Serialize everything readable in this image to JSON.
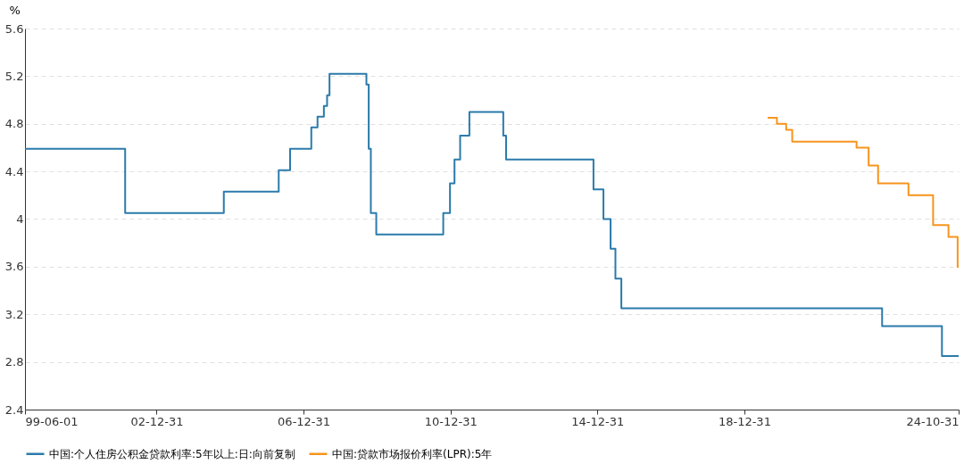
{
  "chart_data": {
    "type": "step",
    "ylabel": "%",
    "series": [
      {
        "name": "中国:个人住房公积金贷款利率:5年以上:日:向前复制",
        "color": "#2b7bab",
        "x": [
          "1999-06-01",
          "2002-02-21",
          "2004-10-29",
          "2006-04-28",
          "2006-08-19",
          "2007-03-18",
          "2007-05-19",
          "2007-07-21",
          "2007-08-22",
          "2007-09-15",
          "2008-09-16",
          "2008-10-09",
          "2008-10-30",
          "2008-12-23",
          "2010-10-20",
          "2010-12-26",
          "2011-02-09",
          "2011-04-06",
          "2011-07-07",
          "2012-06-08",
          "2012-07-06",
          "2014-11-22",
          "2015-03-01",
          "2015-05-11",
          "2015-06-28",
          "2015-08-26",
          "2022-10-01",
          "2024-05-18",
          "2024-10-31"
        ],
        "values": [
          4.59,
          4.05,
          4.23,
          4.41,
          4.59,
          4.77,
          4.86,
          4.95,
          5.04,
          5.22,
          5.13,
          4.59,
          4.05,
          3.87,
          4.05,
          4.3,
          4.5,
          4.7,
          4.9,
          4.7,
          4.5,
          4.25,
          4.0,
          3.75,
          3.5,
          3.25,
          3.1,
          2.85,
          2.85
        ]
      },
      {
        "name": "中国:贷款市场报价利率(LPR):5年",
        "color": "#f7941d",
        "x": [
          "2019-08-20",
          "2019-11-20",
          "2020-02-20",
          "2020-04-20",
          "2022-01-20",
          "2022-05-20",
          "2022-08-22",
          "2023-06-20",
          "2024-02-20",
          "2024-07-22",
          "2024-10-21",
          "2024-10-31"
        ],
        "values": [
          4.85,
          4.8,
          4.75,
          4.65,
          4.6,
          4.45,
          4.3,
          4.2,
          3.95,
          3.85,
          3.6,
          3.6
        ]
      }
    ],
    "xlim": [
      "1999-06-01",
      "2024-10-31"
    ],
    "xticks": [
      {
        "value": "1999-06-01",
        "label": "99-06-01"
      },
      {
        "value": "2002-12-31",
        "label": "02-12-31"
      },
      {
        "value": "2006-12-31",
        "label": "06-12-31"
      },
      {
        "value": "2010-12-31",
        "label": "10-12-31"
      },
      {
        "value": "2014-12-31",
        "label": "14-12-31"
      },
      {
        "value": "2018-12-31",
        "label": "18-12-31"
      },
      {
        "value": "2024-10-31",
        "label": "24-10-31"
      }
    ],
    "ylim": [
      2.4,
      5.6
    ],
    "yticks": [
      2.4,
      2.8,
      3.2,
      3.6,
      4,
      4.4,
      4.8,
      5.2,
      5.6
    ],
    "grid": "y",
    "legend": "bottom",
    "marker": "none",
    "line_style": "solid"
  }
}
